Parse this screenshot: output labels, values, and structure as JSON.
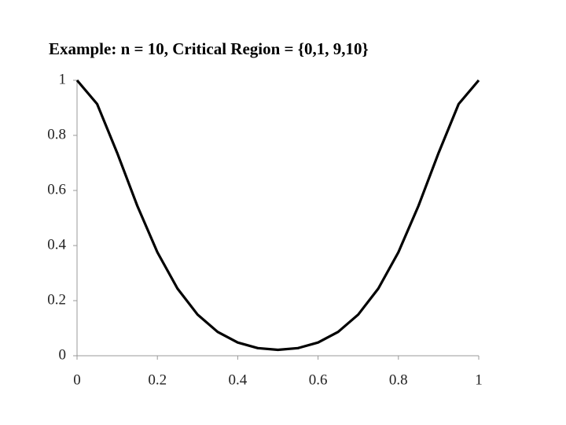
{
  "chart_data": {
    "type": "line",
    "title": "Example: n = 10, Critical Region = {0,1, 9,10}",
    "x": [
      0,
      0.05,
      0.1,
      0.15,
      0.2,
      0.25,
      0.3,
      0.35,
      0.4,
      0.45,
      0.5,
      0.55,
      0.6,
      0.65,
      0.7,
      0.75,
      0.8,
      0.85,
      0.9,
      0.95,
      1
    ],
    "series": [
      {
        "color": "#000000",
        "values": [
          1,
          0.9139,
          0.7361,
          0.5443,
          0.3758,
          0.244,
          0.1495,
          0.0865,
          0.0481,
          0.0277,
          0.0215,
          0.0277,
          0.0481,
          0.0865,
          0.1495,
          0.244,
          0.3758,
          0.5443,
          0.7361,
          0.9139,
          1
        ]
      }
    ],
    "xlim": [
      0,
      1
    ],
    "xticks": [
      0,
      0.2,
      0.4,
      0.6,
      0.8,
      1
    ],
    "ylim": [
      0,
      1
    ],
    "yticks": [
      0,
      0.2,
      0.4,
      0.6,
      0.8,
      1
    ],
    "grid": false
  }
}
